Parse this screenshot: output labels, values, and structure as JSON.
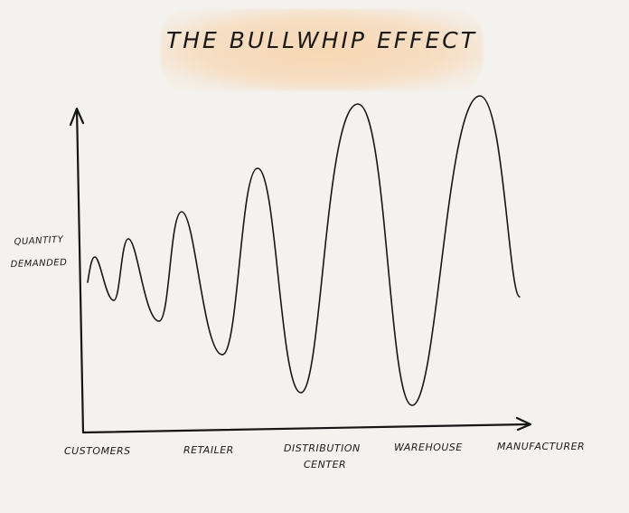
{
  "title": "The Bullwhip Effect",
  "y_axis_label": {
    "line1": "Quantity",
    "line2": "Demanded"
  },
  "x_axis_stages": [
    {
      "line1": "Customers",
      "line2": ""
    },
    {
      "line1": "Retailer",
      "line2": ""
    },
    {
      "line1": "Distribution",
      "line2": "Center"
    },
    {
      "line1": "Warehouse",
      "line2": ""
    },
    {
      "line1": "Manufacturer",
      "line2": ""
    }
  ],
  "colors": {
    "background": "#f4f2ee",
    "title_highlight": "#f6d6b0",
    "ink": "#161616"
  }
}
